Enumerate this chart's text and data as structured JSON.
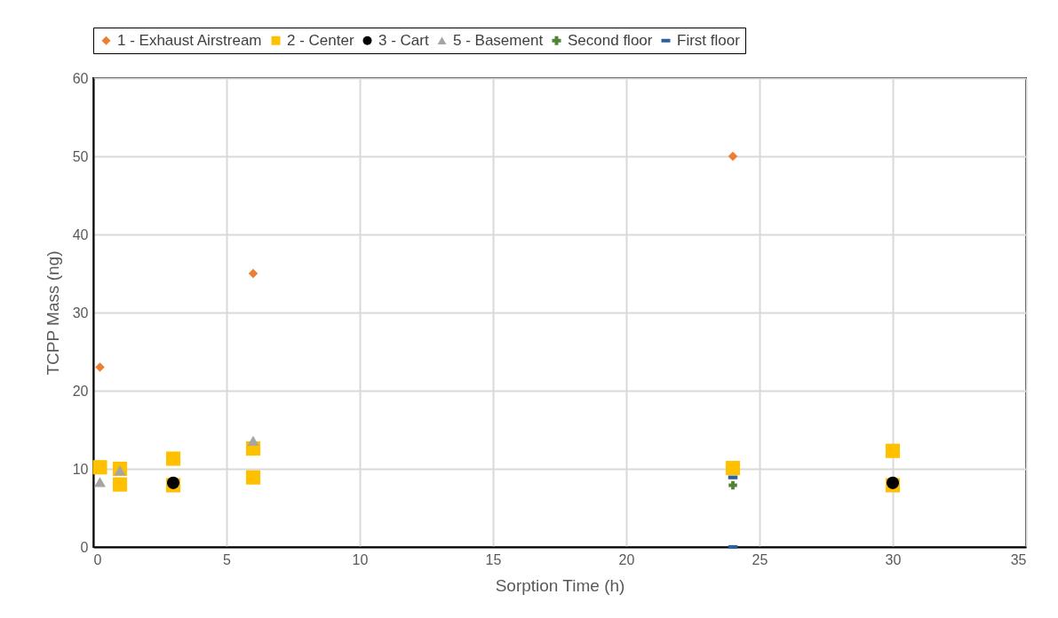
{
  "chart_data": {
    "type": "scatter",
    "xlabel": "Sorption Time (h)",
    "ylabel": "TCPP Mass (ng)",
    "xlim": [
      0,
      35
    ],
    "xticks": [
      0,
      5,
      10,
      15,
      20,
      25,
      30,
      35
    ],
    "ylim": [
      0,
      60
    ],
    "yticks": [
      0,
      10,
      20,
      30,
      40,
      50,
      60
    ],
    "grid": true,
    "legend": "top",
    "series": [
      {
        "name": "1 - Exhaust Airstream",
        "color": "#ed7d31",
        "marker": "diamond",
        "x": [
          0.25,
          6,
          24
        ],
        "values": [
          23,
          35,
          50
        ]
      },
      {
        "name": "2 - Center",
        "color": "#ffc000",
        "marker": "square",
        "x": [
          0.25,
          1,
          1,
          3,
          3,
          6,
          6,
          24,
          30,
          30
        ],
        "values": [
          10.2,
          10,
          8,
          11.3,
          7.9,
          12.6,
          8.9,
          10.1,
          12.3,
          7.9
        ]
      },
      {
        "name": "3 - Cart",
        "color": "#000000",
        "marker": "circle",
        "x": [
          3,
          30
        ],
        "values": [
          8.2,
          8.2
        ]
      },
      {
        "name": "5 - Basement",
        "color": "#a5a5a5",
        "marker": "triangle",
        "x": [
          0.25,
          1,
          6
        ],
        "values": [
          8.3,
          9.8,
          13.6
        ]
      },
      {
        "name": "Second floor",
        "color": "#548235",
        "marker": "cross",
        "x": [
          24
        ],
        "values": [
          7.9
        ]
      },
      {
        "name": "First floor",
        "color": "#2e6099",
        "x": [
          24,
          24
        ],
        "values": [
          8.9,
          0
        ]
      }
    ]
  }
}
